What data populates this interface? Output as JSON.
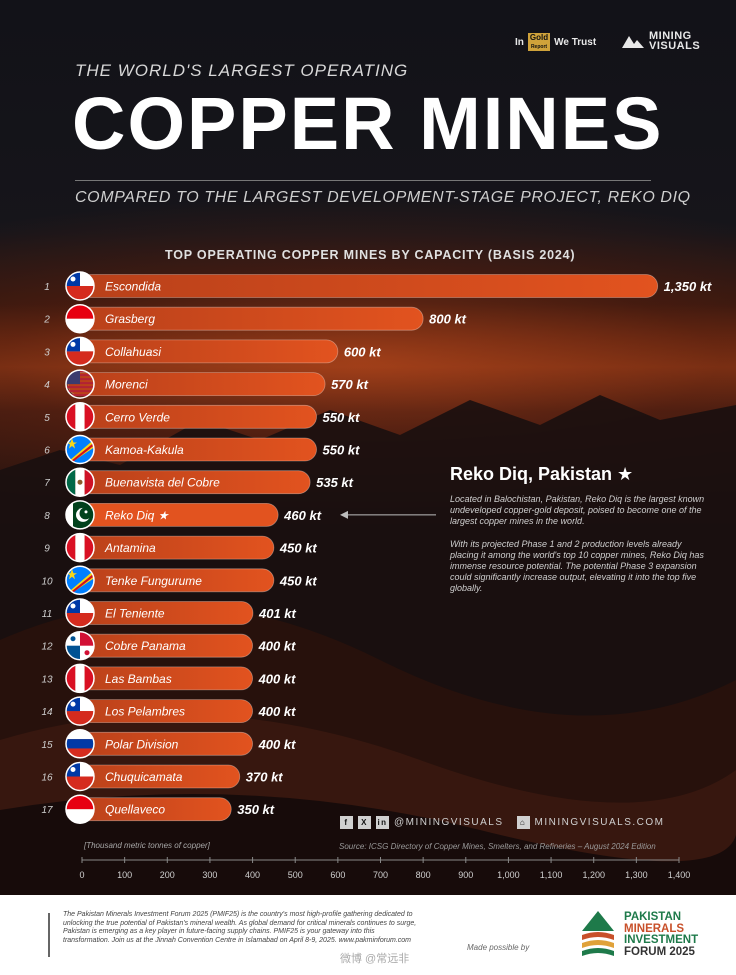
{
  "brand": {
    "sponsor_in": "In",
    "sponsor_gold": "Gold",
    "sponsor_report": "Report",
    "sponsor_trust": "We Trust",
    "publisher_line1": "MINING",
    "publisher_line2": "VISUALS"
  },
  "header": {
    "kicker": "THE WORLD'S LARGEST OPERATING",
    "headline": "COPPER MINES",
    "subhead": "COMPARED TO THE LARGEST DEVELOPMENT-STAGE PROJECT, REKO DIQ"
  },
  "chart_data": {
    "type": "bar",
    "orientation": "horizontal",
    "title": "TOP OPERATING COPPER MINES BY CAPACITY (BASIS 2024)",
    "xlabel": "[Thousand metric tonnes of copper]",
    "xlim": [
      0,
      1400
    ],
    "xticks": [
      "0",
      "100",
      "200",
      "300",
      "400",
      "500",
      "600",
      "700",
      "800",
      "900",
      "1,000",
      "1,100",
      "1,200",
      "1,300",
      "1,400"
    ],
    "ranks": [
      "1",
      "2",
      "3",
      "4",
      "5",
      "6",
      "7",
      "8",
      "9",
      "10",
      "11",
      "12",
      "13",
      "14",
      "15",
      "16",
      "17"
    ],
    "categories": [
      "Escondida",
      "Grasberg",
      "Collahuasi",
      "Morenci",
      "Cerro Verde",
      "Kamoa-Kakula",
      "Buenavista del Cobre",
      "Reko Diq ★",
      "Antamina",
      "Tenke Fungurume",
      "El Teniente",
      "Cobre Panama",
      "Las Bambas",
      "Los Pelambres",
      "Polar Division",
      "Chuquicamata",
      "Quellaveco"
    ],
    "values": [
      1350,
      800,
      600,
      570,
      550,
      550,
      535,
      460,
      450,
      450,
      401,
      400,
      400,
      400,
      400,
      370,
      350
    ],
    "value_labels": [
      "1,350 kt",
      "800 kt",
      "600 kt",
      "570 kt",
      "550 kt",
      "550 kt",
      "535 kt",
      "460 kt",
      "450 kt",
      "450 kt",
      "401 kt",
      "400 kt",
      "400 kt",
      "400 kt",
      "400 kt",
      "370 kt",
      "350 kt"
    ],
    "flags": [
      "chile",
      "indonesia",
      "chile",
      "usa",
      "peru",
      "drc",
      "mexico",
      "pakistan",
      "peru",
      "drc",
      "chile",
      "panama",
      "peru",
      "chile",
      "russia",
      "chile",
      "indonesia"
    ],
    "bar_color": "#e2531f",
    "highlight_index": 7
  },
  "annotation": {
    "title": "Reko Diq, Pakistan ★",
    "para1": "Located in Balochistan, Pakistan, Reko Diq is the largest known undeveloped copper-gold deposit, poised to become one of the largest copper mines in the world.",
    "para2": "With its projected Phase 1 and 2 production levels already placing it among the world's top 10 copper mines, Reko Diq has immense resource potential. The potential Phase 3 expansion could significantly increase output, elevating it into the top five globally."
  },
  "social": {
    "icons": [
      "f",
      "X",
      "in"
    ],
    "handle": "@MININGVISUALS",
    "site": "MININGVISUALS.COM"
  },
  "source": "Source: ICSG Directory of Copper Mines, Smelters, and Refineries – August 2024 Edition",
  "footer": {
    "text": "The Pakistan Minerals Investment Forum 2025 (PMIF25) is the country's most high-profile gathering dedicated to unlocking the true potential of Pakistan's mineral wealth. As global demand for critical minerals continues to surge, Pakistan is emerging as a key player in future-facing supply chains. PMIF25 is your gateway into this transformation. Join us at the Jinnah Convention Centre in Islamabad on April 8-9, 2025. www.pakminforum.com",
    "made_by": "Made possible by",
    "logo_line1": "PAKISTAN",
    "logo_line2": "MINERALS",
    "logo_line3": "INVESTMENT",
    "logo_line4": "FORUM 2025",
    "watermark": "微博 @常远非"
  }
}
